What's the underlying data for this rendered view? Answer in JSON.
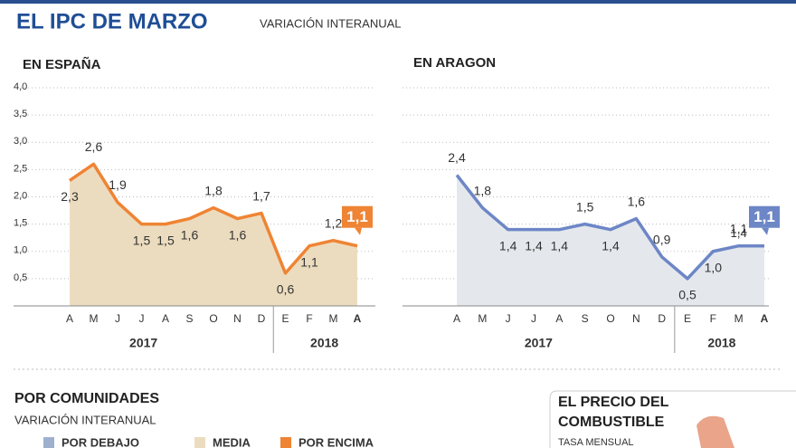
{
  "header": {
    "title": "EL IPC DE MARZO",
    "subtitle": "VARIACIÓN INTERANUAL"
  },
  "chart_data": [
    {
      "type": "line",
      "title": "EN ESPAÑA",
      "color": "#ef8434",
      "fill": "#ecdcbf",
      "categories": [
        "A",
        "M",
        "J",
        "J",
        "A",
        "S",
        "O",
        "N",
        "D",
        "E",
        "F",
        "M",
        "A"
      ],
      "groups": [
        "2017",
        "2018"
      ],
      "values": [
        2.3,
        2.6,
        1.9,
        1.5,
        1.5,
        1.6,
        1.8,
        1.6,
        1.7,
        0.6,
        1.1,
        1.2,
        1.1
      ],
      "value_labels": [
        "2,3",
        "2,6",
        "1,9",
        "1,5",
        "1,5",
        "1,6",
        "1,8",
        "1,6",
        "1,7",
        "0,6",
        "1,1",
        "1,2",
        "1,1"
      ],
      "ylim": [
        0,
        4
      ],
      "ytick_labels": true,
      "yticks": [
        {
          "value": 0.5,
          "label": "0,5"
        },
        {
          "value": 1,
          "label": "1,0"
        },
        {
          "value": 1.5,
          "label": "1,5"
        },
        {
          "value": 2,
          "label": "2,0"
        },
        {
          "value": 2.5,
          "label": "2,5"
        },
        {
          "value": 3,
          "label": "3,0"
        },
        {
          "value": 3.5,
          "label": "3,5"
        },
        {
          "value": 4,
          "label": "4,0"
        }
      ],
      "grid": true
    },
    {
      "type": "line",
      "title": "EN ARAGON",
      "color": "#6d86c6",
      "fill": "#e4e8ed",
      "categories": [
        "A",
        "M",
        "J",
        "J",
        "A",
        "S",
        "O",
        "N",
        "D",
        "E",
        "F",
        "M",
        "A"
      ],
      "groups": [
        "2017",
        "2018"
      ],
      "values": [
        2.4,
        1.8,
        1.4,
        1.4,
        1.4,
        1.5,
        1.4,
        1.6,
        0.9,
        0.5,
        1.0,
        1.1,
        1.1
      ],
      "value_labels": [
        "2,4",
        "1,8",
        "1,4",
        "1,4",
        "1,4",
        "1,5",
        "1,4",
        "1,6",
        "0,9",
        "0,5",
        "1,0",
        "1,1",
        "1,1"
      ],
      "annotations": [
        "1,4"
      ],
      "ylim": [
        0,
        4
      ],
      "ytick_labels": false,
      "yticks": [
        0.5,
        1,
        1.5,
        2,
        2.5,
        3,
        3.5,
        4
      ],
      "grid": true
    }
  ],
  "footer": {
    "title": "POR COMUNIDADES",
    "subtitle": "VARIACIÓN INTERANUAL",
    "legend": [
      {
        "label": "POR DEBAJO",
        "color": "#9fb0cf"
      },
      {
        "label": "MEDIA",
        "color": "#ecdcbf"
      },
      {
        "label": "POR ENCIMA",
        "color": "#ef8434"
      }
    ],
    "side_title": "EL PRECIO DEL COMBUSTIBLE",
    "side_subtitle": "TASA MENSUAL"
  }
}
